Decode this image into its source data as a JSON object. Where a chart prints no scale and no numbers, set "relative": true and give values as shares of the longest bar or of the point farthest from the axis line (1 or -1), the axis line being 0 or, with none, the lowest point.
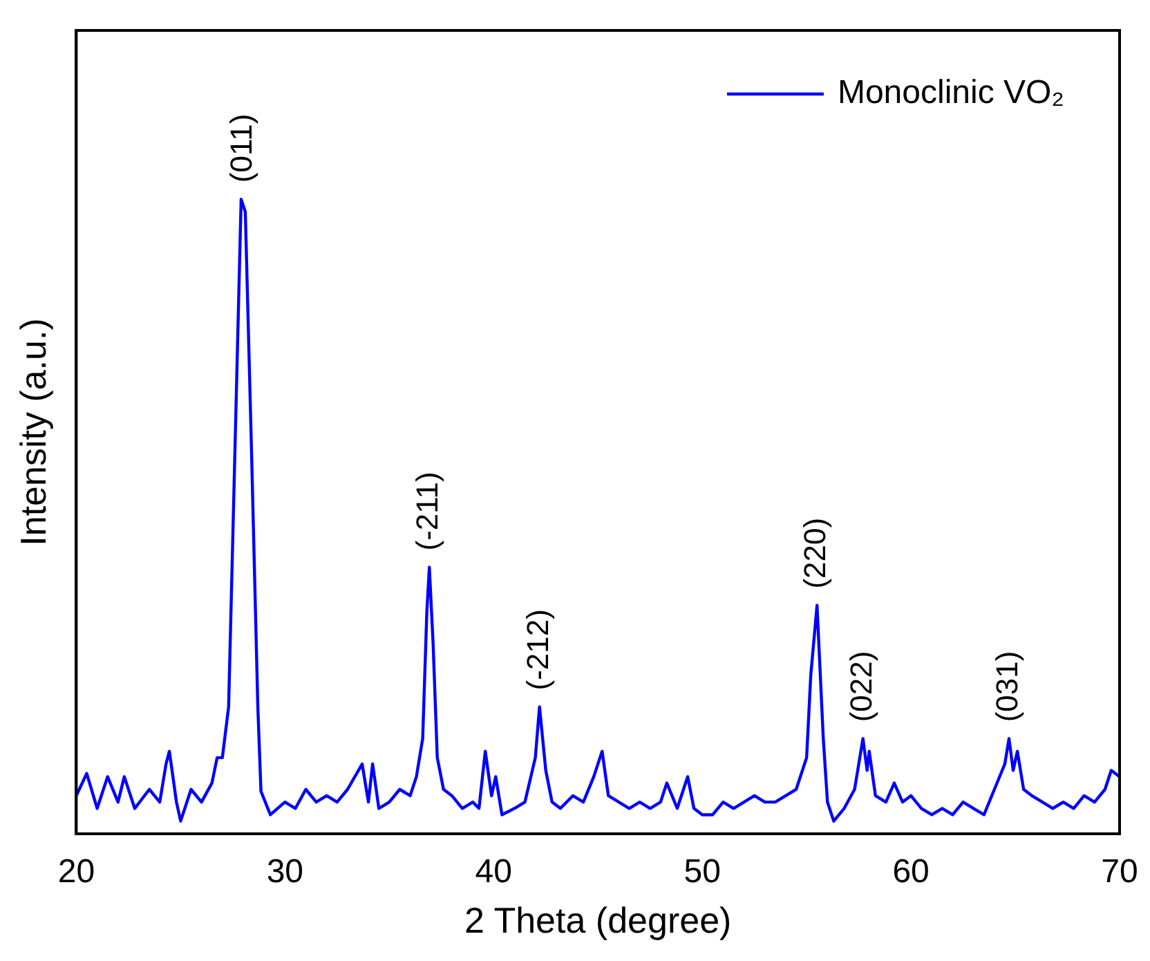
{
  "chart_data": {
    "type": "line",
    "relative": true,
    "xlabel": "2 Theta (degree)",
    "ylabel": "Intensity (a.u.)",
    "xlim": [
      20,
      70
    ],
    "xticks": [
      20,
      30,
      40,
      50,
      60,
      70
    ],
    "legend": "top right",
    "marker": "none",
    "grid": false,
    "series": [
      {
        "name": "Monoclinic VO₂",
        "color": "#0000ff",
        "x": [
          20.0,
          20.5,
          21.0,
          21.5,
          22.0,
          22.3,
          22.8,
          23.5,
          24.0,
          24.3,
          24.46,
          24.8,
          25.0,
          25.5,
          26.0,
          26.5,
          26.75,
          27.0,
          27.3,
          27.6,
          27.9,
          28.1,
          28.4,
          28.7,
          28.85,
          29.3,
          30.0,
          30.5,
          31.0,
          31.5,
          32.0,
          32.5,
          33.0,
          33.7,
          34.0,
          34.2,
          34.5,
          35.0,
          35.5,
          36.0,
          36.3,
          36.6,
          36.8,
          36.92,
          37.1,
          37.3,
          37.6,
          38.0,
          38.5,
          39.0,
          39.3,
          39.6,
          39.9,
          40.1,
          40.4,
          41.0,
          41.5,
          42.0,
          42.2,
          42.5,
          42.8,
          43.2,
          43.8,
          44.3,
          44.8,
          45.2,
          45.5,
          46.0,
          46.5,
          47.0,
          47.5,
          48.0,
          48.3,
          48.8,
          49.3,
          49.6,
          50.0,
          50.5,
          51.0,
          51.5,
          52.0,
          52.5,
          53.0,
          53.5,
          54.0,
          54.5,
          55.0,
          55.2,
          55.5,
          55.8,
          56.0,
          56.3,
          56.8,
          57.3,
          57.7,
          57.9,
          58.0,
          58.3,
          58.8,
          59.2,
          59.6,
          60.0,
          60.5,
          61.0,
          61.5,
          62.0,
          62.5,
          63.0,
          63.5,
          64.0,
          64.5,
          64.7,
          64.9,
          65.1,
          65.4,
          65.8,
          66.3,
          66.8,
          67.3,
          67.8,
          68.3,
          68.8,
          69.3,
          69.6,
          70.0
        ],
        "values": [
          0.06,
          0.095,
          0.04,
          0.09,
          0.05,
          0.09,
          0.04,
          0.07,
          0.05,
          0.11,
          0.13,
          0.05,
          0.02,
          0.07,
          0.05,
          0.08,
          0.12,
          0.12,
          0.2,
          0.6,
          1.0,
          0.98,
          0.6,
          0.2,
          0.067,
          0.03,
          0.05,
          0.04,
          0.07,
          0.05,
          0.06,
          0.05,
          0.07,
          0.11,
          0.05,
          0.11,
          0.04,
          0.05,
          0.07,
          0.06,
          0.09,
          0.15,
          0.35,
          0.42,
          0.3,
          0.12,
          0.07,
          0.06,
          0.04,
          0.05,
          0.04,
          0.13,
          0.06,
          0.09,
          0.03,
          0.04,
          0.05,
          0.12,
          0.2,
          0.1,
          0.05,
          0.04,
          0.06,
          0.05,
          0.09,
          0.13,
          0.06,
          0.05,
          0.04,
          0.05,
          0.04,
          0.05,
          0.08,
          0.04,
          0.09,
          0.04,
          0.03,
          0.03,
          0.05,
          0.04,
          0.05,
          0.06,
          0.05,
          0.05,
          0.06,
          0.07,
          0.12,
          0.25,
          0.36,
          0.15,
          0.05,
          0.02,
          0.04,
          0.07,
          0.15,
          0.1,
          0.13,
          0.06,
          0.05,
          0.08,
          0.05,
          0.06,
          0.04,
          0.03,
          0.04,
          0.03,
          0.05,
          0.04,
          0.03,
          0.07,
          0.11,
          0.15,
          0.1,
          0.13,
          0.07,
          0.06,
          0.05,
          0.04,
          0.05,
          0.04,
          0.06,
          0.05,
          0.07,
          0.1,
          0.09
        ]
      }
    ],
    "annotations": [
      {
        "text": "(011)",
        "x": 28.0,
        "y": 1.0
      },
      {
        "text": "(-211)",
        "x": 36.92,
        "y": 0.42
      },
      {
        "text": "(-212)",
        "x": 42.2,
        "y": 0.2
      },
      {
        "text": "(220)",
        "x": 55.5,
        "y": 0.36
      },
      {
        "text": "(022)",
        "x": 57.7,
        "y": 0.15
      },
      {
        "text": "(031)",
        "x": 64.7,
        "y": 0.15
      }
    ]
  }
}
